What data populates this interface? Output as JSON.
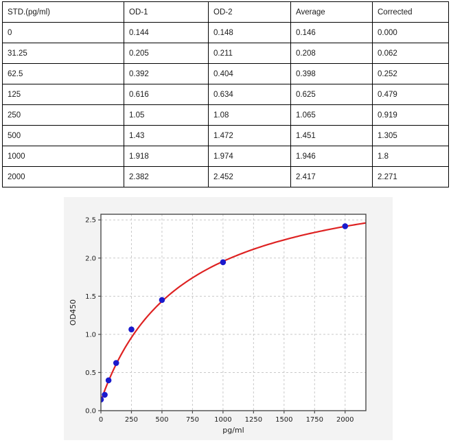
{
  "table": {
    "headers": [
      "STD.(pg/ml)",
      "OD-1",
      "OD-2",
      "Average",
      "Corrected"
    ],
    "rows": [
      [
        "0",
        "0.144",
        "0.148",
        "0.146",
        "0.000"
      ],
      [
        "31.25",
        "0.205",
        "0.211",
        "0.208",
        "0.062"
      ],
      [
        "62.5",
        "0.392",
        "0.404",
        "0.398",
        "0.252"
      ],
      [
        "125",
        "0.616",
        "0.634",
        "0.625",
        "0.479"
      ],
      [
        "250",
        "1.05",
        "1.08",
        "1.065",
        "0.919"
      ],
      [
        "500",
        "1.43",
        "1.472",
        "1.451",
        "1.305"
      ],
      [
        "1000",
        "1.918",
        "1.974",
        "1.946",
        "1.8"
      ],
      [
        "2000",
        "2.382",
        "2.452",
        "2.417",
        "2.271"
      ]
    ]
  },
  "chart_data": {
    "type": "scatter",
    "title": "",
    "xlabel": "pg/ml",
    "ylabel": "OD450",
    "x": [
      0,
      31.25,
      62.5,
      125,
      250,
      500,
      1000,
      2000
    ],
    "y": [
      0.146,
      0.208,
      0.398,
      0.625,
      1.065,
      1.451,
      1.946,
      2.417
    ],
    "xticks": [
      0,
      250,
      500,
      750,
      1000,
      1250,
      1500,
      1750,
      2000
    ],
    "xtick_labels": [
      "0",
      "250",
      "500",
      "750",
      "1000",
      "1250",
      "1500",
      "1750",
      "2000"
    ],
    "yticks": [
      0,
      0.5,
      1.0,
      1.5,
      2.0,
      2.5
    ],
    "ytick_labels": [
      "0.0",
      "0.5",
      "1.0",
      "1.5",
      "2.0",
      "2.5"
    ],
    "xlim": [
      0,
      2170
    ],
    "ylim": [
      0,
      2.574
    ],
    "grid": true,
    "legend": "none",
    "fit_curve": {
      "model": "y = c + a*x/(b+x)",
      "a": 3.05,
      "b": 670,
      "c": 0.13
    },
    "colors": {
      "points": "#1a1acd",
      "curve": "#de2222",
      "panel_bg": "#f3f3f3",
      "plot_bg": "#ffffff",
      "grid": "#c9c9c9",
      "spine": "#4a4a4a",
      "tick_text": "#1c1c1c"
    }
  }
}
